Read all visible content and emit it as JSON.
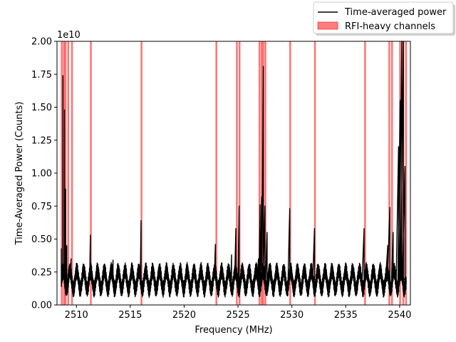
{
  "chart_data": {
    "type": "line",
    "xlabel": "Frequency (MHz)",
    "ylabel": "Time-Averaged Power (Counts)",
    "y_offset_label": "1e10",
    "xlim": [
      2508.2,
      2541.0
    ],
    "ylim": [
      0.0,
      2.0
    ],
    "x_ticks": [
      2510,
      2515,
      2520,
      2525,
      2530,
      2535,
      2540
    ],
    "y_ticks": [
      0.0,
      0.25,
      0.5,
      0.75,
      1.0,
      1.25,
      1.5,
      1.75,
      2.0
    ],
    "x_tick_labels": [
      "2510",
      "2515",
      "2520",
      "2525",
      "2530",
      "2535",
      "2540"
    ],
    "y_tick_labels": [
      "0.00",
      "0.25",
      "0.50",
      "0.75",
      "1.00",
      "1.25",
      "1.50",
      "1.75",
      "2.00"
    ],
    "grid": false,
    "legend_position": "top-right, outside plot area",
    "legend": [
      {
        "label": "Time-averaged power",
        "kind": "line",
        "color": "#000000"
      },
      {
        "label": "RFI-heavy channels",
        "kind": "patch",
        "color": "#ff0000"
      }
    ],
    "series": [
      {
        "name": "Time-averaged power",
        "color": "#000000",
        "baseline": {
          "min": 0.12,
          "max": 0.26,
          "ripple_period_mhz": 0.64,
          "x_start": 2508.6,
          "x_end": 2540.6
        },
        "spikes": [
          {
            "x": 2508.6,
            "y": 0.43
          },
          {
            "x": 2508.75,
            "y": 1.74
          },
          {
            "x": 2508.9,
            "y": 1.48
          },
          {
            "x": 2509.0,
            "y": 0.88
          },
          {
            "x": 2509.1,
            "y": 0.45
          },
          {
            "x": 2509.5,
            "y": 0.35
          },
          {
            "x": 2511.3,
            "y": 0.53
          },
          {
            "x": 2513.4,
            "y": 0.34
          },
          {
            "x": 2516.0,
            "y": 0.64
          },
          {
            "x": 2522.9,
            "y": 0.46
          },
          {
            "x": 2524.4,
            "y": 0.38
          },
          {
            "x": 2524.8,
            "y": 0.58
          },
          {
            "x": 2525.1,
            "y": 0.75
          },
          {
            "x": 2526.9,
            "y": 0.35
          },
          {
            "x": 2527.05,
            "y": 0.76
          },
          {
            "x": 2527.2,
            "y": 0.82
          },
          {
            "x": 2527.35,
            "y": 1.81
          },
          {
            "x": 2527.5,
            "y": 0.75
          },
          {
            "x": 2527.7,
            "y": 0.55
          },
          {
            "x": 2527.9,
            "y": 0.31
          },
          {
            "x": 2529.8,
            "y": 0.73
          },
          {
            "x": 2532.1,
            "y": 0.58
          },
          {
            "x": 2536.7,
            "y": 0.58
          },
          {
            "x": 2538.9,
            "y": 0.45
          },
          {
            "x": 2539.1,
            "y": 0.74
          },
          {
            "x": 2539.4,
            "y": 0.55
          },
          {
            "x": 2539.9,
            "y": 1.2
          },
          {
            "x": 2540.05,
            "y": 1.55
          },
          {
            "x": 2540.2,
            "y": 2.0
          },
          {
            "x": 2540.35,
            "y": 2.0
          },
          {
            "x": 2540.5,
            "y": 1.05
          }
        ]
      }
    ],
    "rfi_channels": [
      2508.6,
      2508.8,
      2508.95,
      2509.2,
      2509.55,
      2511.3,
      2516.0,
      2522.95,
      2524.85,
      2525.1,
      2526.95,
      2527.15,
      2527.3,
      2527.5,
      2529.8,
      2532.1,
      2536.75,
      2539.0,
      2539.25,
      2540.0,
      2540.3,
      2540.55
    ]
  }
}
